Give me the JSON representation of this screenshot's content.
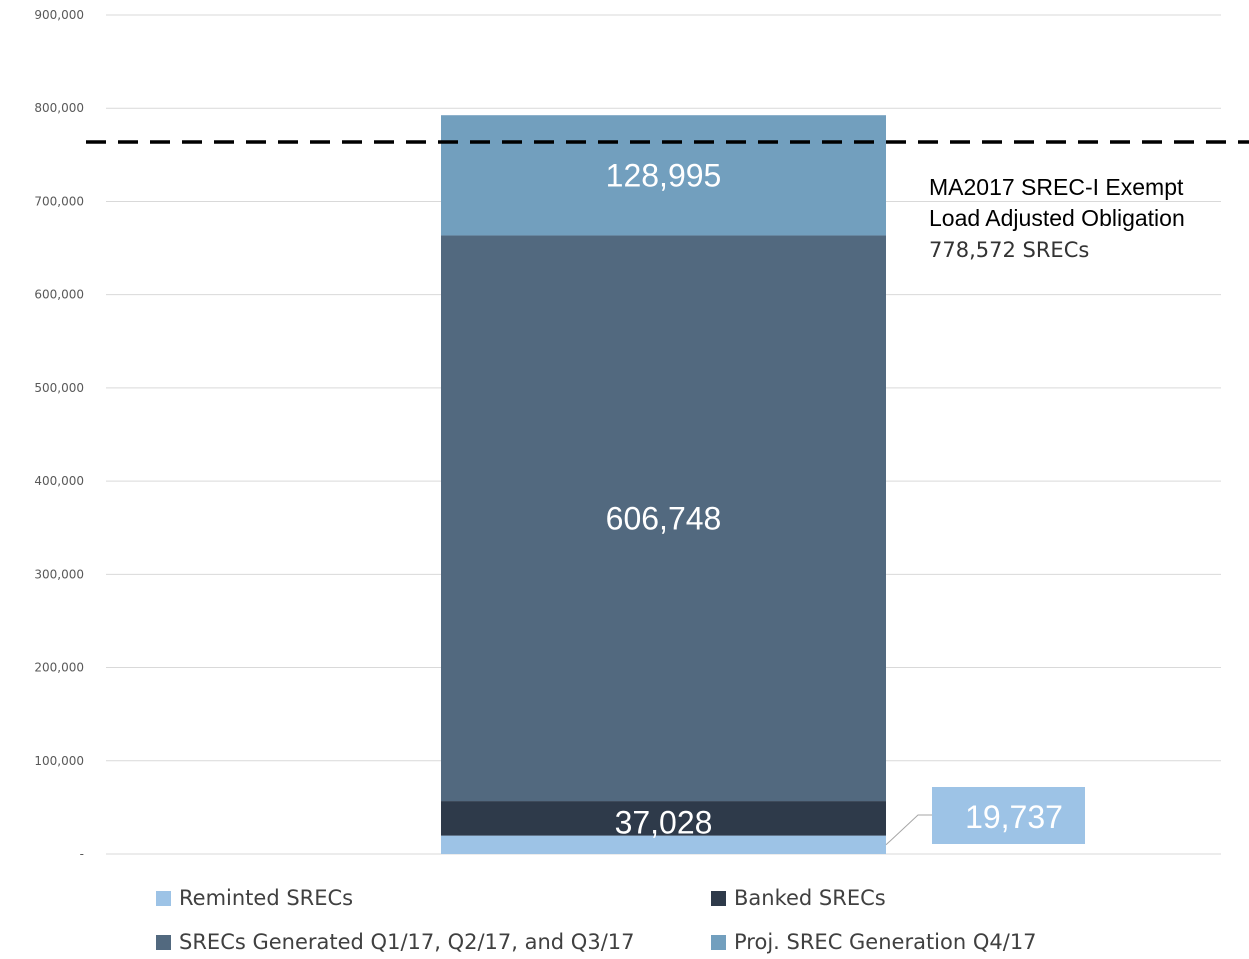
{
  "chart_data": {
    "type": "bar",
    "stacked": true,
    "title": "",
    "xlabel": "",
    "ylabel": "",
    "ylim": [
      0,
      900000
    ],
    "yticks": [
      {
        "value": 0,
        "label": "-"
      },
      {
        "value": 100000,
        "label": "100,000"
      },
      {
        "value": 200000,
        "label": "200,000"
      },
      {
        "value": 300000,
        "label": "300,000"
      },
      {
        "value": 400000,
        "label": "400,000"
      },
      {
        "value": 500000,
        "label": "500,000"
      },
      {
        "value": 600000,
        "label": "600,000"
      },
      {
        "value": 700000,
        "label": "700,000"
      },
      {
        "value": 800000,
        "label": "800,000"
      },
      {
        "value": 900000,
        "label": "900,000"
      }
    ],
    "grid": true,
    "legend_position": "bottom",
    "series": [
      {
        "name": "Reminted SRECs",
        "value": 19737,
        "label": "19,737",
        "color": "#9dc3e6"
      },
      {
        "name": "Banked SRECs",
        "value": 37028,
        "label": "37,028",
        "color": "#2e3a4a"
      },
      {
        "name": "SRECs Generated Q1/17, Q2/17, and Q3/17",
        "value": 606748,
        "label": "606,748",
        "color": "#52697f"
      },
      {
        "name": "Proj. SREC Generation Q4/17",
        "value": 128995,
        "label": "128,995",
        "color": "#729fbe"
      }
    ],
    "legend_order": [
      0,
      1,
      2,
      3
    ],
    "reference_line": {
      "value": 778572,
      "style": "dashed",
      "color": "#000000",
      "annotation_line1": "MA2017 SREC-I Exempt",
      "annotation_line2": "Load Adjusted Obligation",
      "annotation_line3": "778,572 SRECs"
    }
  }
}
